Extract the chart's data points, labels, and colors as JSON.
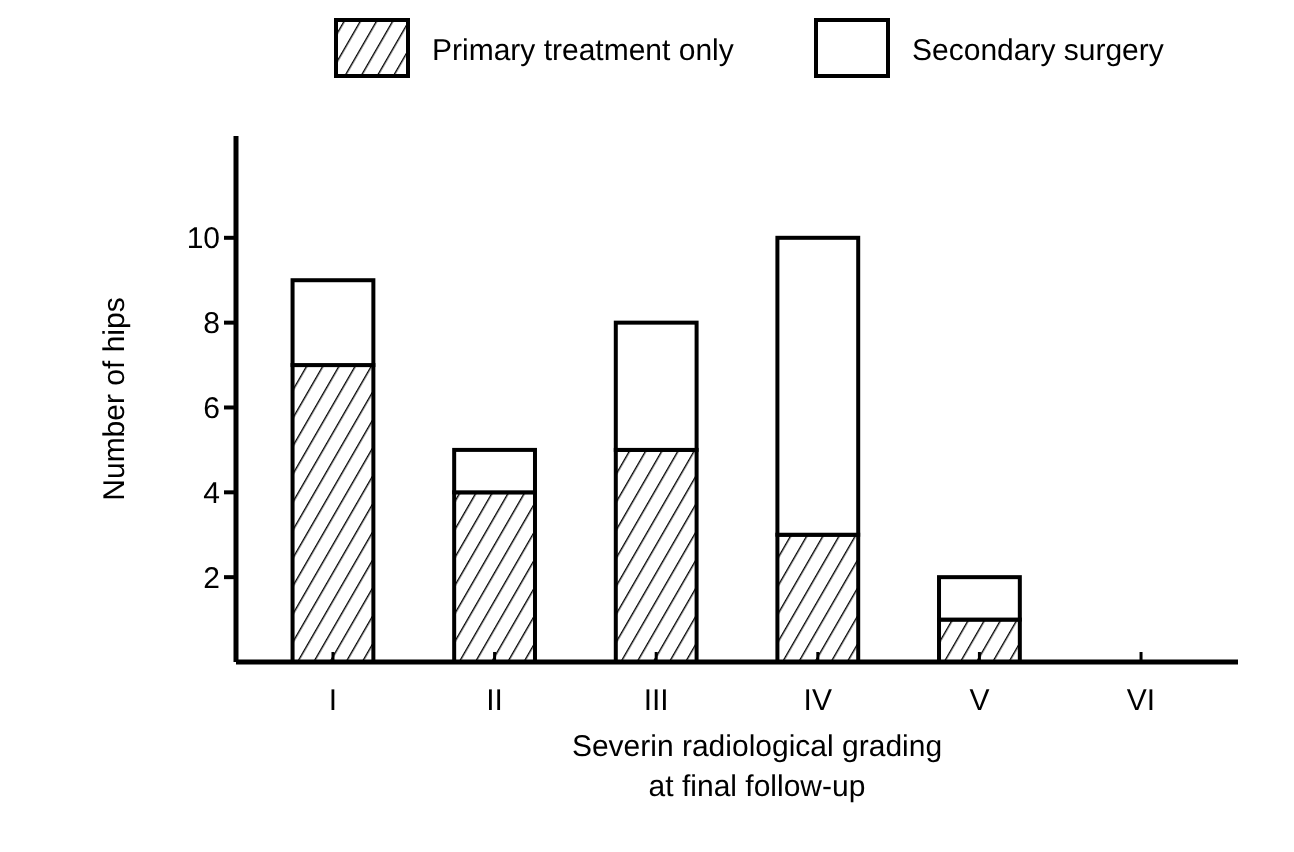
{
  "chart_data": {
    "type": "bar",
    "stacked": true,
    "xlabel": "Severin radiological grading\nat final follow-up",
    "ylabel": "Number of hips",
    "categories": [
      "I",
      "II",
      "III",
      "IV",
      "V",
      "VI"
    ],
    "series": [
      {
        "name": "Primary treatment only",
        "color": "#000000",
        "values": [
          7,
          4,
          5,
          3,
          1,
          0
        ]
      },
      {
        "name": "Secondary surgery",
        "color": "#ffffff",
        "values": [
          2,
          1,
          3,
          7,
          1,
          0
        ]
      }
    ],
    "ylim": [
      0,
      12.4
    ],
    "yticks": [
      2,
      4,
      6,
      8,
      10
    ],
    "grid": false,
    "legend": "top"
  }
}
